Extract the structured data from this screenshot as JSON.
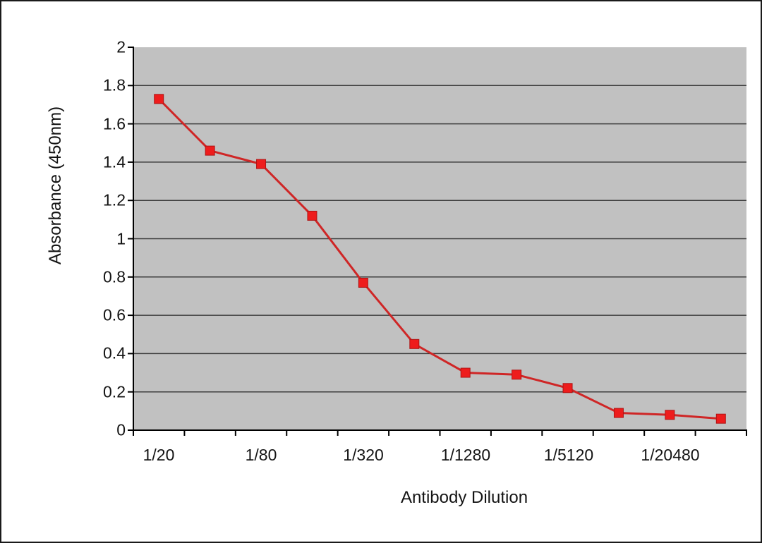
{
  "figure": {
    "background": "#ffffff",
    "frame_border_color": "#1a1a1a"
  },
  "chart_data": {
    "type": "line",
    "title": "",
    "xlabel": "Antibody Dilution",
    "ylabel": "Absorbance (450nm)",
    "n_points": 12,
    "values": [
      1.73,
      1.46,
      1.39,
      1.12,
      0.77,
      0.45,
      0.3,
      0.29,
      0.22,
      0.09,
      0.08,
      0.06
    ],
    "x_tick_labels": [
      "1/20",
      "1/80",
      "1/320",
      "1/1280",
      "1/5120",
      "1/20480"
    ],
    "x_labeled_point_indices": [
      0,
      2,
      4,
      6,
      8,
      10
    ],
    "y_tick_labels": [
      "0",
      "0.2",
      "0.4",
      "0.6",
      "0.8",
      "1",
      "1.2",
      "1.4",
      "1.6",
      "1.8",
      "2"
    ],
    "ylim": [
      0,
      2
    ],
    "grid": "horizontal",
    "legend": "none",
    "marker_shape": "square",
    "colors": {
      "plot_background": "#c1c1c1",
      "gridline": "#3c3c3c",
      "axis": "#000000",
      "line": "#cf2626",
      "marker": "#ee1c1c",
      "marker_stroke": "#b01414",
      "text": "#141414"
    }
  }
}
